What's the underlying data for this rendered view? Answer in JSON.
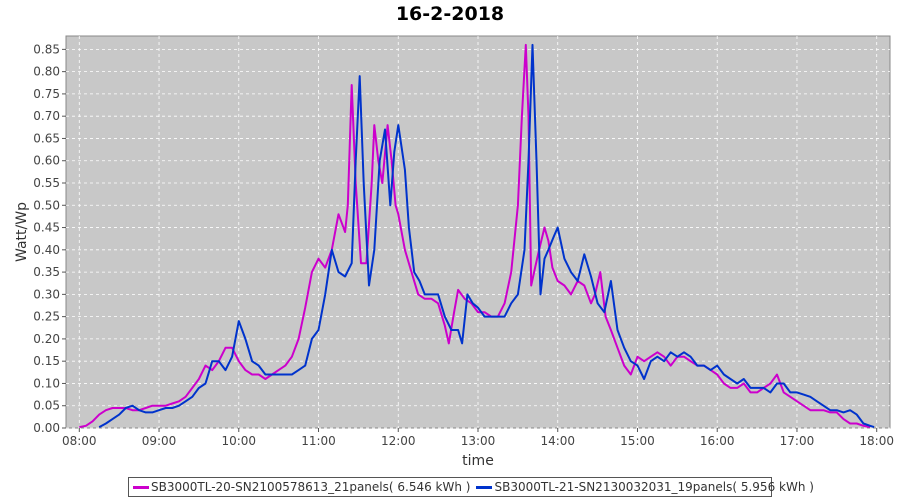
{
  "chart_data": {
    "type": "line",
    "title": "16-2-2018",
    "xlabel": "time",
    "ylabel": "Watt/Wp",
    "x_ticks": [
      "08:00",
      "09:00",
      "10:00",
      "11:00",
      "12:00",
      "13:00",
      "14:00",
      "15:00",
      "16:00",
      "17:00",
      "18:00"
    ],
    "y_ticks": [
      "0.00",
      "0.05",
      "0.10",
      "0.15",
      "0.20",
      "0.25",
      "0.30",
      "0.35",
      "0.40",
      "0.45",
      "0.50",
      "0.55",
      "0.60",
      "0.65",
      "0.70",
      "0.75",
      "0.80",
      "0.85"
    ],
    "xlim": [
      "07:50",
      "18:10"
    ],
    "ylim": [
      0,
      0.88
    ],
    "grid": true,
    "legend_position": "bottom",
    "series": [
      {
        "name": "SB3000TL-20-SN2100578613_21panels( 6.546 kWh )",
        "color": "#cc00cc",
        "points": [
          [
            "08:00",
            0.002
          ],
          [
            "08:05",
            0.005
          ],
          [
            "08:10",
            0.015
          ],
          [
            "08:15",
            0.03
          ],
          [
            "08:20",
            0.04
          ],
          [
            "08:25",
            0.045
          ],
          [
            "08:30",
            0.045
          ],
          [
            "08:35",
            0.045
          ],
          [
            "08:40",
            0.04
          ],
          [
            "08:45",
            0.04
          ],
          [
            "08:50",
            0.045
          ],
          [
            "08:55",
            0.05
          ],
          [
            "09:00",
            0.05
          ],
          [
            "09:05",
            0.05
          ],
          [
            "09:10",
            0.055
          ],
          [
            "09:15",
            0.06
          ],
          [
            "09:20",
            0.07
          ],
          [
            "09:25",
            0.09
          ],
          [
            "09:30",
            0.11
          ],
          [
            "09:35",
            0.14
          ],
          [
            "09:40",
            0.13
          ],
          [
            "09:45",
            0.15
          ],
          [
            "09:50",
            0.18
          ],
          [
            "09:55",
            0.18
          ],
          [
            "10:00",
            0.15
          ],
          [
            "10:05",
            0.13
          ],
          [
            "10:10",
            0.12
          ],
          [
            "10:15",
            0.12
          ],
          [
            "10:20",
            0.11
          ],
          [
            "10:25",
            0.12
          ],
          [
            "10:30",
            0.13
          ],
          [
            "10:35",
            0.14
          ],
          [
            "10:40",
            0.16
          ],
          [
            "10:45",
            0.2
          ],
          [
            "10:50",
            0.27
          ],
          [
            "10:55",
            0.35
          ],
          [
            "11:00",
            0.38
          ],
          [
            "11:05",
            0.36
          ],
          [
            "11:10",
            0.4
          ],
          [
            "11:15",
            0.48
          ],
          [
            "11:20",
            0.44
          ],
          [
            "11:22",
            0.5
          ],
          [
            "11:25",
            0.77
          ],
          [
            "11:28",
            0.55
          ],
          [
            "11:32",
            0.37
          ],
          [
            "11:36",
            0.37
          ],
          [
            "11:40",
            0.55
          ],
          [
            "11:42",
            0.68
          ],
          [
            "11:45",
            0.6
          ],
          [
            "11:48",
            0.55
          ],
          [
            "11:52",
            0.68
          ],
          [
            "11:55",
            0.6
          ],
          [
            "11:58",
            0.5
          ],
          [
            "12:00",
            0.48
          ],
          [
            "12:05",
            0.4
          ],
          [
            "12:10",
            0.35
          ],
          [
            "12:15",
            0.3
          ],
          [
            "12:20",
            0.29
          ],
          [
            "12:25",
            0.29
          ],
          [
            "12:30",
            0.28
          ],
          [
            "12:35",
            0.23
          ],
          [
            "12:38",
            0.19
          ],
          [
            "12:42",
            0.26
          ],
          [
            "12:45",
            0.31
          ],
          [
            "12:50",
            0.29
          ],
          [
            "12:55",
            0.28
          ],
          [
            "13:00",
            0.26
          ],
          [
            "13:05",
            0.26
          ],
          [
            "13:10",
            0.25
          ],
          [
            "13:15",
            0.25
          ],
          [
            "13:20",
            0.28
          ],
          [
            "13:25",
            0.35
          ],
          [
            "13:30",
            0.5
          ],
          [
            "13:33",
            0.7
          ],
          [
            "13:36",
            0.86
          ],
          [
            "13:38",
            0.7
          ],
          [
            "13:40",
            0.32
          ],
          [
            "13:43",
            0.36
          ],
          [
            "13:46",
            0.4
          ],
          [
            "13:50",
            0.45
          ],
          [
            "13:53",
            0.42
          ],
          [
            "13:56",
            0.36
          ],
          [
            "14:00",
            0.33
          ],
          [
            "14:05",
            0.32
          ],
          [
            "14:10",
            0.3
          ],
          [
            "14:15",
            0.33
          ],
          [
            "14:20",
            0.32
          ],
          [
            "14:25",
            0.28
          ],
          [
            "14:28",
            0.3
          ],
          [
            "14:32",
            0.35
          ],
          [
            "14:36",
            0.25
          ],
          [
            "14:40",
            0.22
          ],
          [
            "14:45",
            0.18
          ],
          [
            "14:50",
            0.14
          ],
          [
            "14:55",
            0.12
          ],
          [
            "15:00",
            0.16
          ],
          [
            "15:05",
            0.15
          ],
          [
            "15:10",
            0.16
          ],
          [
            "15:15",
            0.17
          ],
          [
            "15:20",
            0.16
          ],
          [
            "15:25",
            0.14
          ],
          [
            "15:30",
            0.16
          ],
          [
            "15:35",
            0.16
          ],
          [
            "15:40",
            0.15
          ],
          [
            "15:45",
            0.14
          ],
          [
            "15:50",
            0.14
          ],
          [
            "15:55",
            0.13
          ],
          [
            "16:00",
            0.12
          ],
          [
            "16:05",
            0.1
          ],
          [
            "16:10",
            0.09
          ],
          [
            "16:15",
            0.09
          ],
          [
            "16:20",
            0.1
          ],
          [
            "16:25",
            0.08
          ],
          [
            "16:30",
            0.08
          ],
          [
            "16:35",
            0.09
          ],
          [
            "16:40",
            0.1
          ],
          [
            "16:45",
            0.12
          ],
          [
            "16:50",
            0.08
          ],
          [
            "16:55",
            0.07
          ],
          [
            "17:00",
            0.06
          ],
          [
            "17:05",
            0.05
          ],
          [
            "17:10",
            0.04
          ],
          [
            "17:15",
            0.04
          ],
          [
            "17:20",
            0.04
          ],
          [
            "17:25",
            0.035
          ],
          [
            "17:30",
            0.035
          ],
          [
            "17:35",
            0.02
          ],
          [
            "17:40",
            0.01
          ],
          [
            "17:45",
            0.01
          ],
          [
            "17:50",
            0.005
          ],
          [
            "17:55",
            0.002
          ]
        ]
      },
      {
        "name": "SB3000TL-21-SN2130032031_19panels( 5.956 kWh )",
        "color": "#0033cc",
        "points": [
          [
            "08:15",
            0.002
          ],
          [
            "08:20",
            0.01
          ],
          [
            "08:25",
            0.02
          ],
          [
            "08:30",
            0.03
          ],
          [
            "08:35",
            0.045
          ],
          [
            "08:40",
            0.05
          ],
          [
            "08:45",
            0.04
          ],
          [
            "08:50",
            0.035
          ],
          [
            "08:55",
            0.035
          ],
          [
            "09:00",
            0.04
          ],
          [
            "09:05",
            0.045
          ],
          [
            "09:10",
            0.045
          ],
          [
            "09:15",
            0.05
          ],
          [
            "09:20",
            0.06
          ],
          [
            "09:25",
            0.07
          ],
          [
            "09:30",
            0.09
          ],
          [
            "09:35",
            0.1
          ],
          [
            "09:40",
            0.15
          ],
          [
            "09:45",
            0.15
          ],
          [
            "09:50",
            0.13
          ],
          [
            "09:55",
            0.16
          ],
          [
            "10:00",
            0.24
          ],
          [
            "10:05",
            0.2
          ],
          [
            "10:10",
            0.15
          ],
          [
            "10:15",
            0.14
          ],
          [
            "10:20",
            0.12
          ],
          [
            "10:25",
            0.12
          ],
          [
            "10:30",
            0.12
          ],
          [
            "10:35",
            0.12
          ],
          [
            "10:40",
            0.12
          ],
          [
            "10:45",
            0.13
          ],
          [
            "10:50",
            0.14
          ],
          [
            "10:55",
            0.2
          ],
          [
            "11:00",
            0.22
          ],
          [
            "11:05",
            0.3
          ],
          [
            "11:10",
            0.4
          ],
          [
            "11:15",
            0.35
          ],
          [
            "11:20",
            0.34
          ],
          [
            "11:25",
            0.37
          ],
          [
            "11:28",
            0.6
          ],
          [
            "11:31",
            0.79
          ],
          [
            "11:34",
            0.55
          ],
          [
            "11:38",
            0.32
          ],
          [
            "11:42",
            0.4
          ],
          [
            "11:46",
            0.6
          ],
          [
            "11:50",
            0.67
          ],
          [
            "11:54",
            0.5
          ],
          [
            "11:57",
            0.62
          ],
          [
            "12:00",
            0.68
          ],
          [
            "12:05",
            0.58
          ],
          [
            "12:08",
            0.45
          ],
          [
            "12:12",
            0.35
          ],
          [
            "12:16",
            0.33
          ],
          [
            "12:20",
            0.3
          ],
          [
            "12:25",
            0.3
          ],
          [
            "12:30",
            0.3
          ],
          [
            "12:35",
            0.25
          ],
          [
            "12:40",
            0.22
          ],
          [
            "12:45",
            0.22
          ],
          [
            "12:48",
            0.19
          ],
          [
            "12:52",
            0.3
          ],
          [
            "12:56",
            0.28
          ],
          [
            "13:00",
            0.27
          ],
          [
            "13:05",
            0.25
          ],
          [
            "13:10",
            0.25
          ],
          [
            "13:15",
            0.25
          ],
          [
            "13:20",
            0.25
          ],
          [
            "13:25",
            0.28
          ],
          [
            "13:30",
            0.3
          ],
          [
            "13:35",
            0.4
          ],
          [
            "13:38",
            0.6
          ],
          [
            "13:41",
            0.86
          ],
          [
            "13:44",
            0.6
          ],
          [
            "13:47",
            0.3
          ],
          [
            "13:50",
            0.38
          ],
          [
            "13:53",
            0.4
          ],
          [
            "13:57",
            0.43
          ],
          [
            "14:00",
            0.45
          ],
          [
            "14:05",
            0.38
          ],
          [
            "14:10",
            0.35
          ],
          [
            "14:15",
            0.33
          ],
          [
            "14:20",
            0.39
          ],
          [
            "14:25",
            0.34
          ],
          [
            "14:30",
            0.28
          ],
          [
            "14:35",
            0.26
          ],
          [
            "14:40",
            0.33
          ],
          [
            "14:45",
            0.22
          ],
          [
            "14:50",
            0.18
          ],
          [
            "14:55",
            0.15
          ],
          [
            "15:00",
            0.14
          ],
          [
            "15:05",
            0.11
          ],
          [
            "15:10",
            0.15
          ],
          [
            "15:15",
            0.16
          ],
          [
            "15:20",
            0.15
          ],
          [
            "15:25",
            0.17
          ],
          [
            "15:30",
            0.16
          ],
          [
            "15:35",
            0.17
          ],
          [
            "15:40",
            0.16
          ],
          [
            "15:45",
            0.14
          ],
          [
            "15:50",
            0.14
          ],
          [
            "15:55",
            0.13
          ],
          [
            "16:00",
            0.14
          ],
          [
            "16:05",
            0.12
          ],
          [
            "16:10",
            0.11
          ],
          [
            "16:15",
            0.1
          ],
          [
            "16:20",
            0.11
          ],
          [
            "16:25",
            0.09
          ],
          [
            "16:30",
            0.09
          ],
          [
            "16:35",
            0.09
          ],
          [
            "16:40",
            0.08
          ],
          [
            "16:45",
            0.1
          ],
          [
            "16:50",
            0.1
          ],
          [
            "16:55",
            0.08
          ],
          [
            "17:00",
            0.08
          ],
          [
            "17:05",
            0.075
          ],
          [
            "17:10",
            0.07
          ],
          [
            "17:15",
            0.06
          ],
          [
            "17:20",
            0.05
          ],
          [
            "17:25",
            0.04
          ],
          [
            "17:30",
            0.04
          ],
          [
            "17:35",
            0.035
          ],
          [
            "17:40",
            0.04
          ],
          [
            "17:45",
            0.03
          ],
          [
            "17:50",
            0.01
          ],
          [
            "17:55",
            0.005
          ],
          [
            "17:58",
            0.002
          ]
        ]
      }
    ]
  }
}
